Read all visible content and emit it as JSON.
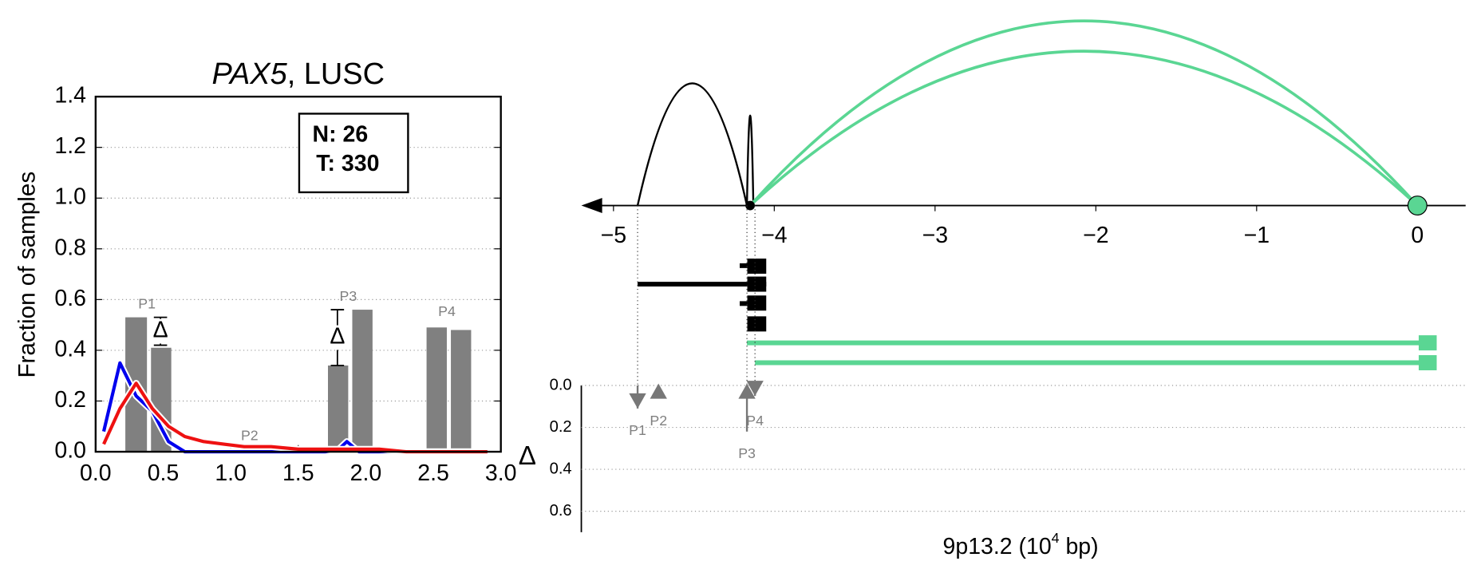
{
  "chart_data": [
    {
      "type": "histogram-lines",
      "title": [
        "PAX5",
        ", LUSC"
      ],
      "ylabel": "Fraction of samples",
      "xlim": [
        0,
        3
      ],
      "xticks": [
        {
          "value": 0,
          "label": "0.0"
        },
        {
          "value": 0.5,
          "label": "0.5"
        },
        {
          "value": 1,
          "label": "1.0"
        },
        {
          "value": 1.5,
          "label": "1.5"
        },
        {
          "value": 2,
          "label": "2.0"
        },
        {
          "value": 2.5,
          "label": "2.5"
        },
        {
          "value": 3,
          "label": "3.0"
        }
      ],
      "ylim": [
        0,
        1.4
      ],
      "yticks": [
        {
          "value": 0,
          "label": "0.0"
        },
        {
          "value": 0.2,
          "label": "0.2"
        },
        {
          "value": 0.4,
          "label": "0.4"
        },
        {
          "value": 0.6,
          "label": "0.6"
        },
        {
          "value": 0.8,
          "label": "0.8"
        },
        {
          "value": 1,
          "label": "1.0"
        },
        {
          "value": 1.2,
          "label": "1.2"
        },
        {
          "value": 1.4,
          "label": "1.4"
        }
      ],
      "grid": true,
      "x": [
        0.06,
        0.18,
        0.3,
        0.42,
        0.54,
        0.66,
        0.8,
        0.95,
        1.1,
        1.3,
        1.5,
        1.7,
        1.8,
        1.86,
        1.95,
        2.1,
        2.3,
        2.5,
        2.7,
        2.9
      ],
      "series": [
        {
          "name": "N: 26",
          "color": "#0000ee",
          "values": [
            0.08,
            0.35,
            0.22,
            0.16,
            0.04,
            0.0,
            0.0,
            0.0,
            0.0,
            0.0,
            0.0,
            0.0,
            0.01,
            0.04,
            0.0,
            0.0,
            0.0,
            0.0,
            0.0,
            0.0
          ]
        },
        {
          "name": "T: 330",
          "color": "#ee1111",
          "values": [
            0.03,
            0.17,
            0.27,
            0.17,
            0.1,
            0.06,
            0.04,
            0.03,
            0.02,
            0.02,
            0.01,
            0.01,
            0.01,
            0.01,
            0.01,
            0.01,
            0.0,
            0.0,
            0.0,
            0.0
          ]
        }
      ],
      "bars": {
        "color": "#808080",
        "edges": [
          [
            0.22,
            0.38
          ],
          [
            0.41,
            0.56
          ],
          [
            1.72,
            1.87
          ],
          [
            1.9,
            2.05
          ],
          [
            2.45,
            2.6
          ],
          [
            2.63,
            2.78
          ]
        ],
        "values": [
          0.53,
          0.41,
          0.34,
          0.56,
          0.49,
          0.48
        ]
      },
      "peaks": [
        {
          "label": "P1",
          "x": 0.38,
          "y": 0.58
        },
        {
          "label": "P2",
          "x": 1.14,
          "y": 0.06
        },
        {
          "label": "P3",
          "x": 1.87,
          "y": 0.61
        },
        {
          "label": "P4",
          "x": 2.6,
          "y": 0.55
        }
      ],
      "deltas": [
        {
          "label": "Δ",
          "x": 0.48,
          "low": 0.42,
          "high": 0.53
        },
        {
          "label": "Δ",
          "x": 1.79,
          "low": 0.34,
          "high": 0.56
        }
      ]
    },
    {
      "type": "arc",
      "xlabel": [
        "9p13.2 (10",
        "4",
        " bp)"
      ],
      "xlim": [
        -5.2,
        0.3
      ],
      "xticks": [
        {
          "value": -5,
          "label": "−5"
        },
        {
          "value": -4,
          "label": "−4"
        },
        {
          "value": -3,
          "label": "−3"
        },
        {
          "value": -2,
          "label": "−2"
        },
        {
          "value": -1,
          "label": "−1"
        },
        0
      ],
      "anchors": [
        {
          "x": -4.15,
          "color": "#000000"
        },
        {
          "x": 0,
          "color": "#5ad693"
        }
      ],
      "arcs": [
        {
          "start": -4.85,
          "end": -4.17,
          "color": "#000000"
        },
        {
          "start": -4.17,
          "end": -4.13,
          "color": "#000000"
        },
        {
          "start": -4.15,
          "end": 0,
          "color": "#5ad693"
        },
        {
          "start": -4.15,
          "end": 0,
          "color": "#5ad693"
        }
      ],
      "transcripts": [
        {
          "start": -4.85,
          "end": -4.05,
          "color": "#000000"
        },
        {
          "start": -4.17,
          "end": 0.12,
          "color": "#5ad693"
        },
        {
          "start": -4.12,
          "end": 0.12,
          "color": "#5ad693"
        }
      ],
      "ylabel": "Δ",
      "ylim": [
        0,
        0.7
      ],
      "yticks": [
        {
          "value": 0,
          "label": "0.0"
        },
        {
          "value": 0.2,
          "label": "0.2"
        },
        {
          "value": 0.4,
          "label": "0.4"
        },
        {
          "value": 0.6,
          "label": "0.6"
        }
      ],
      "grid": true,
      "peaks": [
        {
          "label": "P1",
          "x": -4.85,
          "delta": 0.11,
          "direction": "down"
        },
        {
          "label": "P2",
          "x": -4.72,
          "delta": 0.03,
          "direction": "up"
        },
        {
          "label": "P3",
          "x": -4.17,
          "delta": 0.22,
          "direction": "up"
        },
        {
          "label": "P4",
          "x": -4.12,
          "delta": 0.05,
          "direction": "down"
        }
      ]
    }
  ]
}
